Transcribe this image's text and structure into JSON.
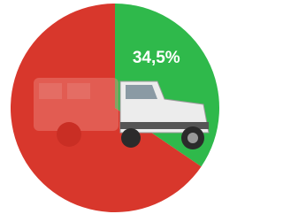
{
  "chart_data": {
    "type": "pie",
    "values": [
      34.5,
      65.5
    ],
    "value_labels": [
      "34,5%",
      null
    ],
    "colors": [
      "#2fb94b",
      "#d8372c"
    ],
    "start_angle": 0,
    "direction": "clockwise"
  }
}
